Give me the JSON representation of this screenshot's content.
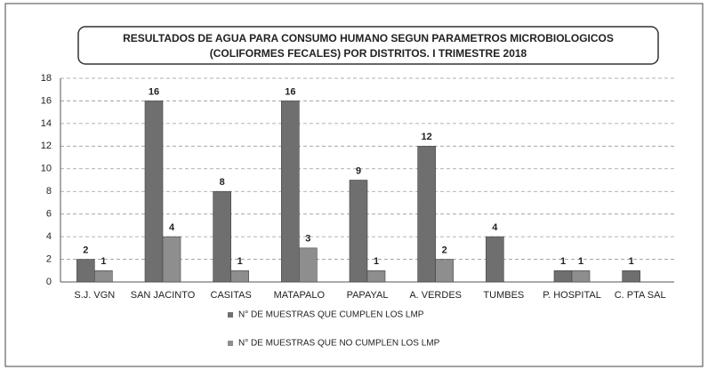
{
  "chart_data": {
    "type": "bar",
    "title": [
      "RESULTADOS DE AGUA PARA CONSUMO HUMANO SEGUN PARAMETROS MICROBIOLOGICOS",
      "(COLIFORMES FECALES) POR DISTRITOS. I TRIMESTRE 2018"
    ],
    "categories": [
      "S.J. VGN",
      "SAN JACINTO",
      "CASITAS",
      "MATAPALO",
      "PAPAYAL",
      "A. VERDES",
      "TUMBES",
      "P. HOSPITAL",
      "C. PTA SAL"
    ],
    "series": [
      {
        "name": "N° DE MUESTRAS QUE CUMPLEN LOS LMP",
        "color": "#6f6f6f",
        "values": [
          2,
          16,
          8,
          16,
          9,
          12,
          4,
          1,
          1
        ]
      },
      {
        "name": "N° DE MUESTRAS QUE NO CUMPLEN LOS LMP",
        "color": "#8e8e8e",
        "values": [
          1,
          4,
          1,
          3,
          1,
          2,
          null,
          1,
          null
        ]
      }
    ],
    "ylim": [
      0,
      18
    ],
    "yticks": [
      0,
      2,
      4,
      6,
      8,
      10,
      12,
      14,
      16,
      18
    ],
    "grid": true
  }
}
